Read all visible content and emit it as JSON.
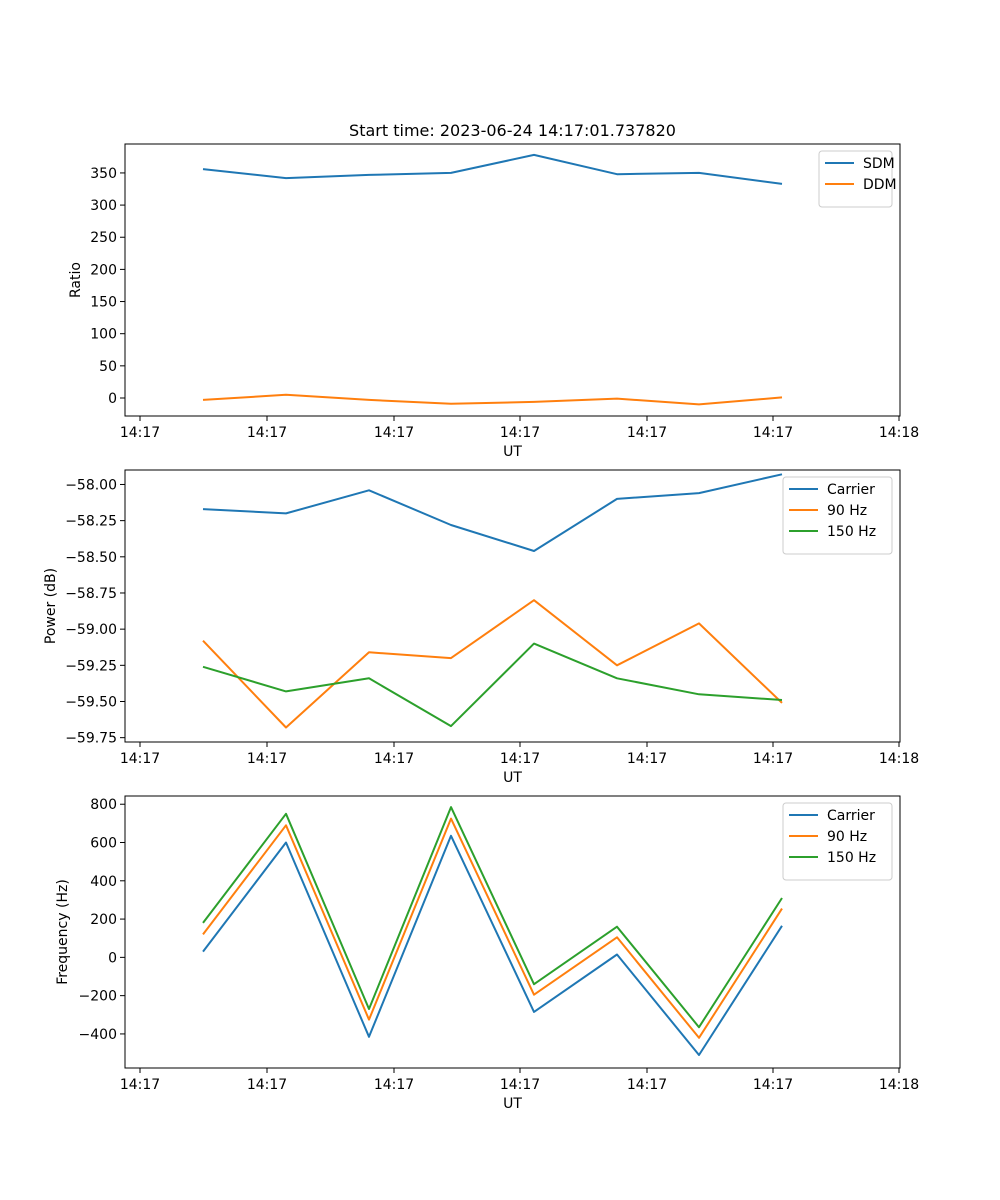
{
  "figure_title": "Start time: 2023-06-24 14:17:01.737820",
  "colors": {
    "blue": "#1f77b4",
    "orange": "#ff7f0e",
    "green": "#2ca02c"
  },
  "chart_data": [
    {
      "type": "line",
      "title": "Start time: 2023-06-24 14:17:01.737820",
      "xlabel": "UT",
      "ylabel": "Ratio",
      "x_tick_labels": [
        "14:17",
        "14:17",
        "14:17",
        "14:17",
        "14:17",
        "14:17",
        "14:18"
      ],
      "y_ticks": [
        0,
        50,
        100,
        150,
        200,
        250,
        300,
        350
      ],
      "y_tick_labels": [
        "0",
        "50",
        "100",
        "150",
        "200",
        "250",
        "300",
        "350"
      ],
      "ylim": [
        -28,
        395
      ],
      "legend": "top-right",
      "grid": false,
      "series": [
        {
          "name": "SDM",
          "color": "#1f77b4",
          "values": [
            356,
            342,
            347,
            350,
            378,
            348,
            350,
            333
          ]
        },
        {
          "name": "DDM",
          "color": "#ff7f0e",
          "values": [
            -3,
            5,
            -3,
            -9,
            -6,
            -1,
            -10,
            1
          ]
        }
      ]
    },
    {
      "type": "line",
      "title": "",
      "xlabel": "UT",
      "ylabel": "Power (dB)",
      "x_tick_labels": [
        "14:17",
        "14:17",
        "14:17",
        "14:17",
        "14:17",
        "14:17",
        "14:18"
      ],
      "y_ticks": [
        -59.75,
        -59.5,
        -59.25,
        -59.0,
        -58.75,
        -58.5,
        -58.25,
        -58.0
      ],
      "y_tick_labels": [
        "−59.75",
        "−59.50",
        "−59.25",
        "−59.00",
        "−58.75",
        "−58.50",
        "−58.25",
        "−58.00"
      ],
      "ylim": [
        -59.78,
        -57.9
      ],
      "legend": "top-right",
      "grid": false,
      "series": [
        {
          "name": "Carrier",
          "color": "#1f77b4",
          "values": [
            -58.17,
            -58.2,
            -58.04,
            -58.28,
            -58.46,
            -58.1,
            -58.06,
            -57.93
          ]
        },
        {
          "name": "90 Hz",
          "color": "#ff7f0e",
          "values": [
            -59.08,
            -59.68,
            -59.16,
            -59.2,
            -58.8,
            -59.25,
            -58.96,
            -59.51
          ]
        },
        {
          "name": "150 Hz",
          "color": "#2ca02c",
          "values": [
            -59.26,
            -59.43,
            -59.34,
            -59.67,
            -59.1,
            -59.34,
            -59.45,
            -59.49
          ]
        }
      ]
    },
    {
      "type": "line",
      "title": "",
      "xlabel": "UT",
      "ylabel": "Frequency (Hz)",
      "x_tick_labels": [
        "14:17",
        "14:17",
        "14:17",
        "14:17",
        "14:17",
        "14:17",
        "14:18"
      ],
      "y_ticks": [
        -400,
        -200,
        0,
        200,
        400,
        600,
        800
      ],
      "y_tick_labels": [
        "−400",
        "−200",
        "0",
        "200",
        "400",
        "600",
        "800"
      ],
      "ylim": [
        -578,
        843
      ],
      "legend": "top-right",
      "grid": false,
      "series": [
        {
          "name": "Carrier",
          "color": "#1f77b4",
          "values": [
            30,
            600,
            -415,
            635,
            -285,
            15,
            -510,
            165
          ]
        },
        {
          "name": "90 Hz",
          "color": "#ff7f0e",
          "values": [
            120,
            690,
            -325,
            725,
            -195,
            105,
            -420,
            255
          ]
        },
        {
          "name": "150 Hz",
          "color": "#2ca02c",
          "values": [
            180,
            750,
            -270,
            785,
            -140,
            160,
            -365,
            310
          ]
        }
      ]
    }
  ]
}
